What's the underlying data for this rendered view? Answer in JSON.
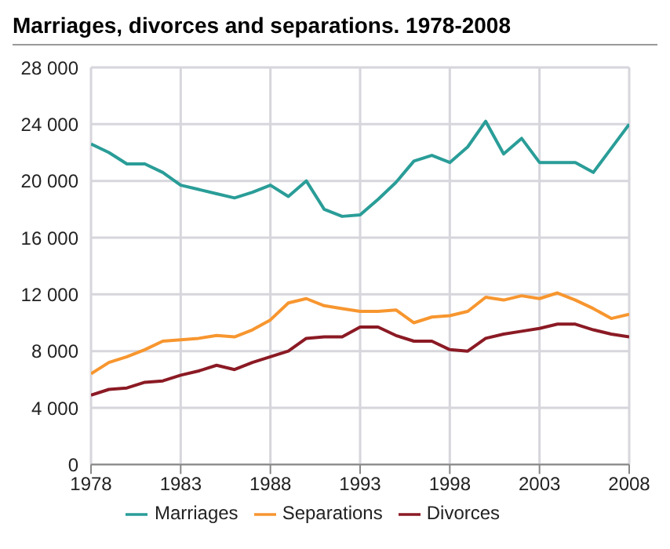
{
  "chart_data": {
    "type": "line",
    "title": "Marriages, divorces and separations. 1978-2008",
    "x": [
      1978,
      1979,
      1980,
      1981,
      1982,
      1983,
      1984,
      1985,
      1986,
      1987,
      1988,
      1989,
      1990,
      1991,
      1992,
      1993,
      1994,
      1995,
      1996,
      1997,
      1998,
      1999,
      2000,
      2001,
      2002,
      2003,
      2004,
      2005,
      2006,
      2007,
      2008
    ],
    "series": [
      {
        "name": "Marriages",
        "color": "#2a9d98",
        "values": [
          22600,
          22000,
          21200,
          21200,
          20600,
          19700,
          19400,
          19100,
          18800,
          19200,
          19700,
          18900,
          20000,
          18000,
          17500,
          17600,
          18700,
          19900,
          21400,
          21800,
          21300,
          22400,
          24200,
          21900,
          23000,
          21300,
          21300,
          21300,
          20600,
          22300,
          24000
        ]
      },
      {
        "name": "Separations",
        "color": "#f7962f",
        "values": [
          6400,
          7200,
          7600,
          8100,
          8700,
          8800,
          8900,
          9100,
          9000,
          9500,
          10200,
          11400,
          11700,
          11200,
          11000,
          10800,
          10800,
          10900,
          10000,
          10400,
          10500,
          10800,
          11800,
          11600,
          11900,
          11700,
          12100,
          11600,
          11000,
          10300,
          10600
        ]
      },
      {
        "name": "Divorces",
        "color": "#8b1a24",
        "values": [
          4900,
          5300,
          5400,
          5800,
          5900,
          6300,
          6600,
          7000,
          6700,
          7200,
          7600,
          8000,
          8900,
          9000,
          9000,
          9700,
          9700,
          9100,
          8700,
          8700,
          8100,
          8000,
          8900,
          9200,
          9400,
          9600,
          9900,
          9900,
          9500,
          9200,
          9000
        ]
      }
    ],
    "xlim": [
      1978,
      2008
    ],
    "xticks": [
      1978,
      1983,
      1988,
      1993,
      1998,
      2003,
      2008
    ],
    "ylim": [
      0,
      28000
    ],
    "yticks": [
      0,
      {
        "value": 4000,
        "label": "4 000"
      },
      {
        "value": 8000,
        "label": "8 000"
      },
      {
        "value": 12000,
        "label": "12 000"
      },
      {
        "value": 16000,
        "label": "16 000"
      },
      {
        "value": 20000,
        "label": "20 000"
      },
      {
        "value": 24000,
        "label": "24 000"
      },
      {
        "value": 28000,
        "label": "28 000"
      }
    ],
    "grid": true,
    "legend": "bottom",
    "marker": "none",
    "line_style": "solid"
  }
}
